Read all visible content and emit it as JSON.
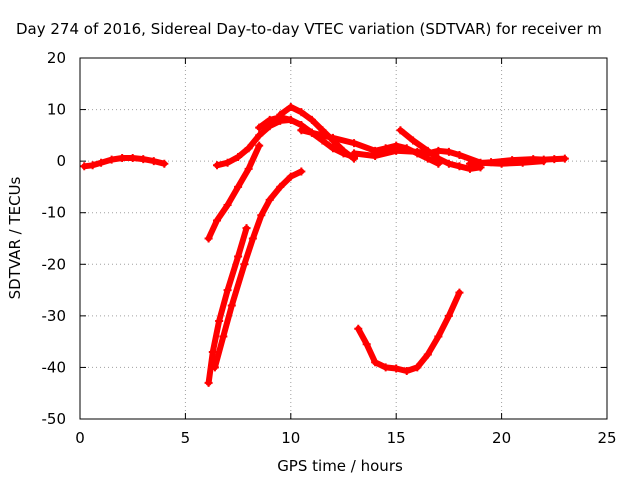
{
  "chart_data": {
    "type": "line",
    "title": "Day 274 of 2016, Sidereal Day-to-day VTEC variation (SDTVAR) for receiver m",
    "xlabel": "GPS time / hours",
    "ylabel": "SDTVAR / TECUs",
    "xlim": [
      0,
      25
    ],
    "ylim": [
      -50,
      20
    ],
    "xticks": [
      0,
      5,
      10,
      15,
      20,
      25
    ],
    "yticks": [
      20,
      10,
      0,
      -10,
      -20,
      -30,
      -40,
      -50
    ],
    "x_tick_labels": [
      "0",
      "5",
      "10",
      "15",
      "20",
      "25"
    ],
    "y_tick_labels": [
      "20",
      "10",
      "0",
      "-10",
      "-20",
      "-30",
      "-40",
      "-50"
    ],
    "grid": true,
    "legend": "none",
    "series_color": "#ff0000",
    "series": [
      {
        "x": [
          0.2,
          0.6,
          1.0,
          1.5,
          2.0,
          2.5,
          3.0,
          3.5,
          4.0
        ],
        "y": [
          -1.0,
          -0.8,
          -0.3,
          0.3,
          0.6,
          0.6,
          0.4,
          0.0,
          -0.5
        ]
      },
      {
        "x": [
          6.5,
          7.0,
          7.5,
          8.0,
          8.5,
          9.0,
          9.5,
          10.0
        ],
        "y": [
          -0.8,
          -0.3,
          0.8,
          2.5,
          5.0,
          6.8,
          7.8,
          8.0
        ]
      },
      {
        "x": [
          6.1,
          6.5,
          7.0,
          7.5,
          8.0,
          8.5
        ],
        "y": [
          -15.0,
          -11.5,
          -8.5,
          -5.0,
          -1.5,
          3.0
        ]
      },
      {
        "x": [
          6.1,
          6.3,
          6.6,
          7.0,
          7.5,
          7.9
        ],
        "y": [
          -43.0,
          -37.0,
          -31.0,
          -25.0,
          -18.5,
          -13.0
        ]
      },
      {
        "x": [
          6.4,
          6.8,
          7.2,
          7.8,
          8.2,
          8.6,
          9.0,
          9.5,
          10.0,
          10.5
        ],
        "y": [
          -40.0,
          -34.0,
          -28.0,
          -20.0,
          -15.0,
          -10.5,
          -7.5,
          -5.0,
          -3.0,
          -2.0
        ]
      },
      {
        "x": [
          8.5,
          9.0,
          9.5,
          10.0,
          10.5,
          11.0,
          11.5,
          12.0,
          12.5,
          13.0
        ],
        "y": [
          6.5,
          8.0,
          8.5,
          8.0,
          7.0,
          5.5,
          4.0,
          2.5,
          1.5,
          0.8
        ]
      },
      {
        "x": [
          9.5,
          10.0,
          10.5,
          11.0,
          11.5,
          12.0,
          12.5,
          13.0
        ],
        "y": [
          9.0,
          10.5,
          9.5,
          8.0,
          6.0,
          4.0,
          2.0,
          0.5
        ]
      },
      {
        "x": [
          10.5,
          11.0,
          12.0,
          13.0,
          14.0,
          14.5,
          15.0,
          15.5,
          16.0,
          16.5,
          17.0
        ],
        "y": [
          6.0,
          5.5,
          4.5,
          3.5,
          2.0,
          2.5,
          3.0,
          2.5,
          1.5,
          0.5,
          -0.5
        ]
      },
      {
        "x": [
          15.2,
          15.8,
          16.5,
          17.0,
          17.5,
          18.0,
          18.5,
          19.0
        ],
        "y": [
          6.0,
          4.0,
          2.0,
          0.5,
          -0.5,
          -1.0,
          -1.5,
          -1.2
        ]
      },
      {
        "x": [
          13.0,
          14.0,
          15.0,
          16.0,
          16.5,
          17.0,
          17.5,
          18.0,
          19.0,
          20.0,
          21.0,
          22.0
        ],
        "y": [
          1.5,
          1.0,
          2.0,
          1.8,
          1.5,
          2.0,
          1.8,
          1.2,
          -0.3,
          -0.5,
          -0.3,
          0.0
        ]
      },
      {
        "x": [
          18.5,
          19.5,
          20.5,
          21.5,
          22.0,
          22.5,
          23.0
        ],
        "y": [
          -0.5,
          -0.2,
          0.2,
          0.4,
          0.3,
          0.4,
          0.5
        ]
      },
      {
        "x": [
          13.2,
          13.6,
          14.0,
          14.5,
          15.0,
          15.5,
          16.0,
          16.5,
          17.0,
          17.5,
          18.0
        ],
        "y": [
          -32.5,
          -35.5,
          -39.0,
          -40.0,
          -40.2,
          -40.7,
          -40.0,
          -37.5,
          -34.0,
          -30.0,
          -25.5
        ]
      }
    ]
  }
}
